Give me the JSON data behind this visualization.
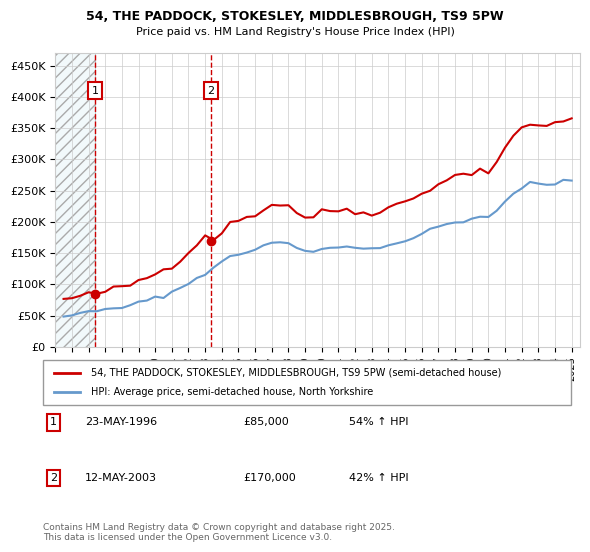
{
  "title1": "54, THE PADDOCK, STOKESLEY, MIDDLESBROUGH, TS9 5PW",
  "title2": "Price paid vs. HM Land Registry's House Price Index (HPI)",
  "legend_line1": "54, THE PADDOCK, STOKESLEY, MIDDLESBROUGH, TS9 5PW (semi-detached house)",
  "legend_line2": "HPI: Average price, semi-detached house, North Yorkshire",
  "footnote": "Contains HM Land Registry data © Crown copyright and database right 2025.\nThis data is licensed under the Open Government Licence v3.0.",
  "sale1_date": "23-MAY-1996",
  "sale1_price": 85000,
  "sale1_hpi": "54% ↑ HPI",
  "sale2_date": "12-MAY-2003",
  "sale2_price": 170000,
  "sale2_hpi": "42% ↑ HPI",
  "sale1_x": 1996.39,
  "sale2_x": 2003.36,
  "red_color": "#cc0000",
  "blue_color": "#6699cc",
  "hatch_color": "#cccccc",
  "ylim": [
    0,
    470000
  ],
  "xlim": [
    1994,
    2025.5
  ],
  "yticks": [
    0,
    50000,
    100000,
    150000,
    200000,
    250000,
    300000,
    350000,
    400000,
    450000
  ],
  "ytick_labels": [
    "£0",
    "£50K",
    "£100K",
    "£150K",
    "£200K",
    "£250K",
    "£300K",
    "£350K",
    "£400K",
    "£450K"
  ],
  "xticks": [
    1994,
    1995,
    1996,
    1997,
    1998,
    1999,
    2000,
    2001,
    2002,
    2003,
    2004,
    2005,
    2006,
    2007,
    2008,
    2009,
    2010,
    2011,
    2012,
    2013,
    2014,
    2015,
    2016,
    2017,
    2018,
    2019,
    2020,
    2021,
    2022,
    2023,
    2024,
    2025
  ]
}
